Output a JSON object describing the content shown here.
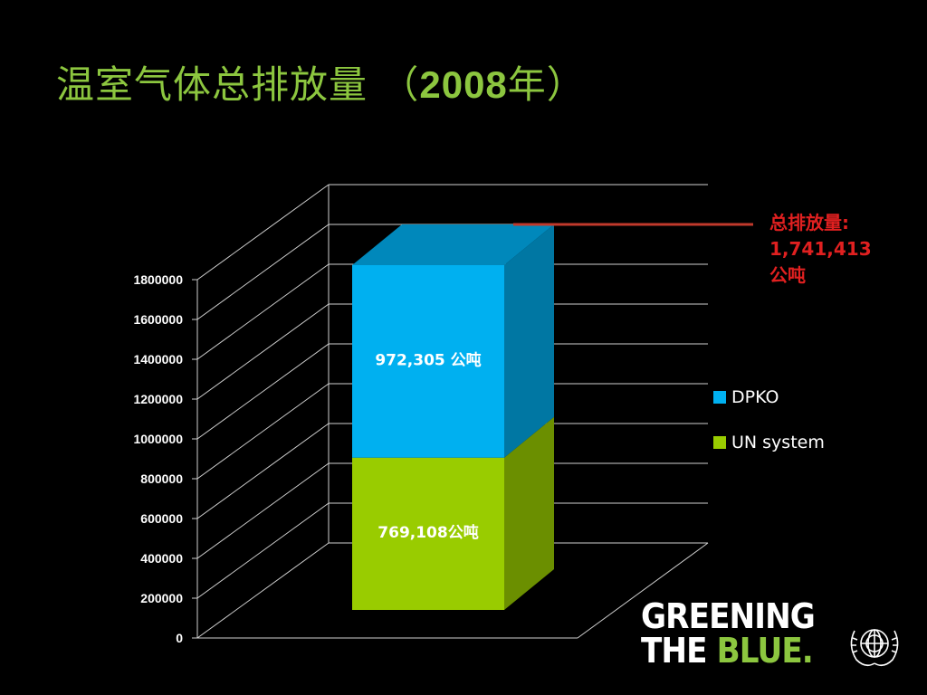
{
  "slide": {
    "title_main": "温室气体总排放量 （",
    "title_year": "2008",
    "title_end": "年）"
  },
  "chart_data": {
    "type": "bar",
    "stacked": true,
    "three_d": true,
    "categories": [
      ""
    ],
    "series": [
      {
        "name": "UN system",
        "values": [
          769108
        ],
        "label": "769,108公吨",
        "color": "#99cc00"
      },
      {
        "name": "DPKO",
        "values": [
          972305
        ],
        "label": "972,305 公吨",
        "color": "#00b0f0"
      }
    ],
    "ylim": [
      0,
      1800000
    ],
    "yticks": [
      0,
      200000,
      400000,
      600000,
      800000,
      1000000,
      1200000,
      1400000,
      1600000,
      1800000
    ],
    "grid": true,
    "legend_position": "right",
    "annotation": {
      "text_line1": "总排放量:",
      "text_line2": "1,741,413",
      "text_line3": "公吨",
      "value": 1741413,
      "color": "#e02020"
    }
  },
  "legend": [
    {
      "name": "DPKO",
      "color": "#00b0f0"
    },
    {
      "name": "UN system",
      "color": "#99cc00"
    }
  ],
  "logo": {
    "line1": "GREENING",
    "line2_a": "THE ",
    "line2_b": "BLUE",
    "line2_c": "."
  }
}
